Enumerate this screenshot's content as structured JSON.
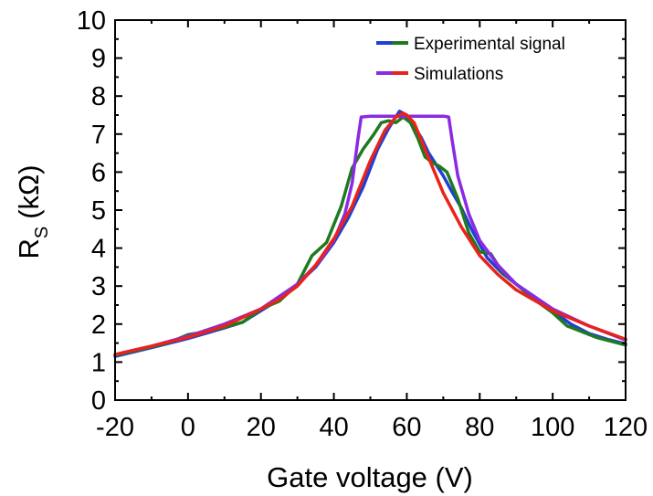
{
  "chart_data": {
    "type": "line",
    "title": "",
    "xlabel": "Gate voltage (V)",
    "ylabel_main": "R",
    "ylabel_sub": "S",
    "ylabel_unit": "(kΩ)",
    "xlim": [
      -20,
      120
    ],
    "ylim": [
      0,
      10
    ],
    "xticks": [
      -20,
      0,
      20,
      40,
      60,
      80,
      100,
      120
    ],
    "xtick_labels": [
      "-20",
      "0",
      "20",
      "40",
      "60",
      "80",
      "100",
      "120"
    ],
    "yticks": [
      0,
      1,
      2,
      3,
      4,
      5,
      6,
      7,
      8,
      9,
      10
    ],
    "ytick_labels": [
      "0",
      "1",
      "2",
      "3",
      "4",
      "5",
      "6",
      "7",
      "8",
      "9",
      "10"
    ],
    "grid": false,
    "legend_position": "top-right",
    "legend": [
      {
        "label": "Experimental signal",
        "colors": [
          "#1f3fd6",
          "#1f7a1f"
        ]
      },
      {
        "label": "Simulations",
        "colors": [
          "#8a2be2",
          "#e8231c"
        ]
      }
    ],
    "series": [
      {
        "color": "#1f3fd6",
        "x": [
          -20,
          -10,
          0,
          10,
          15,
          20,
          25,
          30,
          35,
          40,
          44,
          48,
          52,
          55,
          58,
          60,
          62,
          64,
          66,
          68,
          70,
          72,
          75,
          78,
          82,
          86,
          90,
          95,
          100,
          105,
          110,
          115,
          120
        ],
        "y": [
          1.15,
          1.38,
          1.62,
          1.9,
          2.05,
          2.35,
          2.65,
          3.05,
          3.5,
          4.15,
          4.8,
          5.6,
          6.6,
          7.15,
          7.6,
          7.5,
          7.2,
          6.9,
          6.5,
          6.2,
          5.9,
          5.55,
          5.05,
          4.45,
          3.75,
          3.35,
          3.05,
          2.7,
          2.35,
          2.0,
          1.75,
          1.6,
          1.48
        ]
      },
      {
        "color": "#1f7a1f",
        "x": [
          -20,
          -10,
          -5,
          0,
          5,
          10,
          15,
          20,
          25,
          30,
          34,
          38,
          42,
          45,
          48,
          51,
          53,
          55,
          57,
          59,
          61,
          63,
          65,
          67,
          69,
          71,
          74,
          77,
          80,
          83,
          86,
          90,
          95,
          100,
          104,
          108,
          112,
          116,
          120
        ],
        "y": [
          1.18,
          1.4,
          1.52,
          1.72,
          1.8,
          1.92,
          2.05,
          2.4,
          2.6,
          3.05,
          3.8,
          4.15,
          5.1,
          6.1,
          6.6,
          7.0,
          7.3,
          7.35,
          7.3,
          7.45,
          7.3,
          6.9,
          6.4,
          6.25,
          6.15,
          6.0,
          5.3,
          4.4,
          3.9,
          3.85,
          3.4,
          3.05,
          2.65,
          2.3,
          1.95,
          1.8,
          1.65,
          1.55,
          1.45
        ]
      },
      {
        "color": "#8a2be2",
        "x": [
          -20,
          -10,
          0,
          10,
          20,
          30,
          36,
          40,
          43,
          45,
          46.5,
          47.5,
          50,
          55,
          60,
          65,
          70,
          71.5,
          72.5,
          74,
          77,
          80,
          85,
          90,
          100,
          110,
          120
        ],
        "y": [
          1.2,
          1.42,
          1.68,
          2.0,
          2.4,
          3.05,
          3.65,
          4.2,
          4.9,
          5.7,
          6.8,
          7.45,
          7.47,
          7.47,
          7.47,
          7.47,
          7.47,
          7.45,
          6.8,
          5.9,
          4.9,
          4.2,
          3.55,
          3.05,
          2.4,
          1.95,
          1.58
        ]
      },
      {
        "color": "#e8231c",
        "x": [
          -20,
          -10,
          0,
          10,
          20,
          25,
          30,
          35,
          40,
          45,
          50,
          54,
          57,
          59,
          60,
          62,
          65,
          70,
          75,
          80,
          85,
          90,
          100,
          110,
          120
        ],
        "y": [
          1.2,
          1.42,
          1.65,
          1.95,
          2.4,
          2.65,
          3.0,
          3.55,
          4.25,
          5.1,
          6.3,
          7.1,
          7.45,
          7.55,
          7.5,
          7.3,
          6.6,
          5.45,
          4.55,
          3.8,
          3.3,
          2.9,
          2.35,
          1.95,
          1.6
        ]
      }
    ]
  }
}
